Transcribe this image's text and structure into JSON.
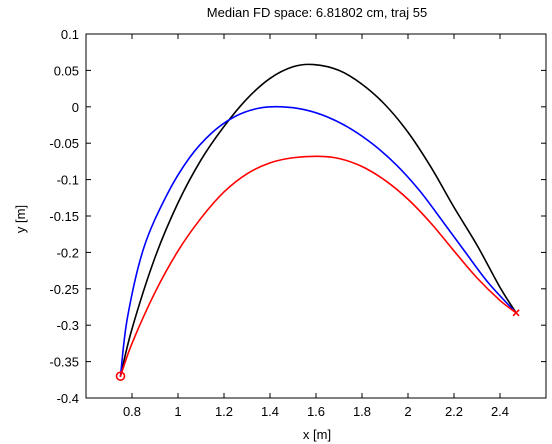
{
  "chart_data": {
    "type": "line",
    "title": "Median FD space: 6.81802 cm, traj 55",
    "xlabel": "x [m]",
    "ylabel": "y [m]",
    "xlim": [
      0.6,
      2.6
    ],
    "ylim": [
      -0.4,
      0.1
    ],
    "x_ticks": [
      0.8,
      1,
      1.2,
      1.4,
      1.6,
      1.8,
      2,
      2.2,
      2.4
    ],
    "x_tick_labels": [
      "0.8",
      "1",
      "1.2",
      "1.4",
      "1.6",
      "1.8",
      "2",
      "2.2",
      "2.4"
    ],
    "y_ticks": [
      -0.4,
      -0.35,
      -0.3,
      -0.25,
      -0.2,
      -0.15,
      -0.1,
      -0.05,
      0,
      0.05,
      0.1
    ],
    "y_tick_labels": [
      "-0.4",
      "-0.35",
      "-0.3",
      "-0.25",
      "-0.2",
      "-0.15",
      "-0.1",
      "-0.05",
      "0",
      "0.05",
      "0.1"
    ],
    "grid": false,
    "series": [
      {
        "color": "#000000",
        "x": [
          0.75,
          0.8,
          0.9,
          1.0,
          1.1,
          1.2,
          1.3,
          1.4,
          1.5,
          1.59,
          1.7,
          1.8,
          1.9,
          2.0,
          2.1,
          2.2,
          2.3,
          2.4,
          2.47
        ],
        "y": [
          -0.37,
          -0.305,
          -0.207,
          -0.132,
          -0.073,
          -0.027,
          0.011,
          0.039,
          0.055,
          0.058,
          0.05,
          0.031,
          0.003,
          -0.035,
          -0.083,
          -0.138,
          -0.19,
          -0.248,
          -0.283
        ]
      },
      {
        "color": "#0000ff",
        "x": [
          0.75,
          0.78,
          0.85,
          0.95,
          1.05,
          1.15,
          1.25,
          1.35,
          1.45,
          1.55,
          1.65,
          1.75,
          1.85,
          1.95,
          2.05,
          2.15,
          2.25,
          2.35,
          2.47
        ],
        "y": [
          -0.37,
          -0.29,
          -0.195,
          -0.122,
          -0.07,
          -0.035,
          -0.013,
          -0.002,
          0.0,
          -0.004,
          -0.014,
          -0.03,
          -0.052,
          -0.08,
          -0.115,
          -0.157,
          -0.2,
          -0.242,
          -0.283
        ]
      },
      {
        "color": "#ff0000",
        "x": [
          0.75,
          0.8,
          0.9,
          1.0,
          1.1,
          1.2,
          1.3,
          1.4,
          1.5,
          1.61,
          1.7,
          1.8,
          1.9,
          2.0,
          2.1,
          2.2,
          2.3,
          2.4,
          2.47
        ],
        "y": [
          -0.37,
          -0.325,
          -0.255,
          -0.198,
          -0.153,
          -0.117,
          -0.092,
          -0.077,
          -0.07,
          -0.068,
          -0.071,
          -0.082,
          -0.101,
          -0.127,
          -0.16,
          -0.198,
          -0.235,
          -0.266,
          -0.283
        ]
      }
    ],
    "markers": [
      {
        "shape": "circle",
        "color": "#ff0000",
        "x": 0.75,
        "y": -0.37
      },
      {
        "shape": "cross",
        "color": "#ff0000",
        "x": 2.47,
        "y": -0.283
      }
    ]
  }
}
